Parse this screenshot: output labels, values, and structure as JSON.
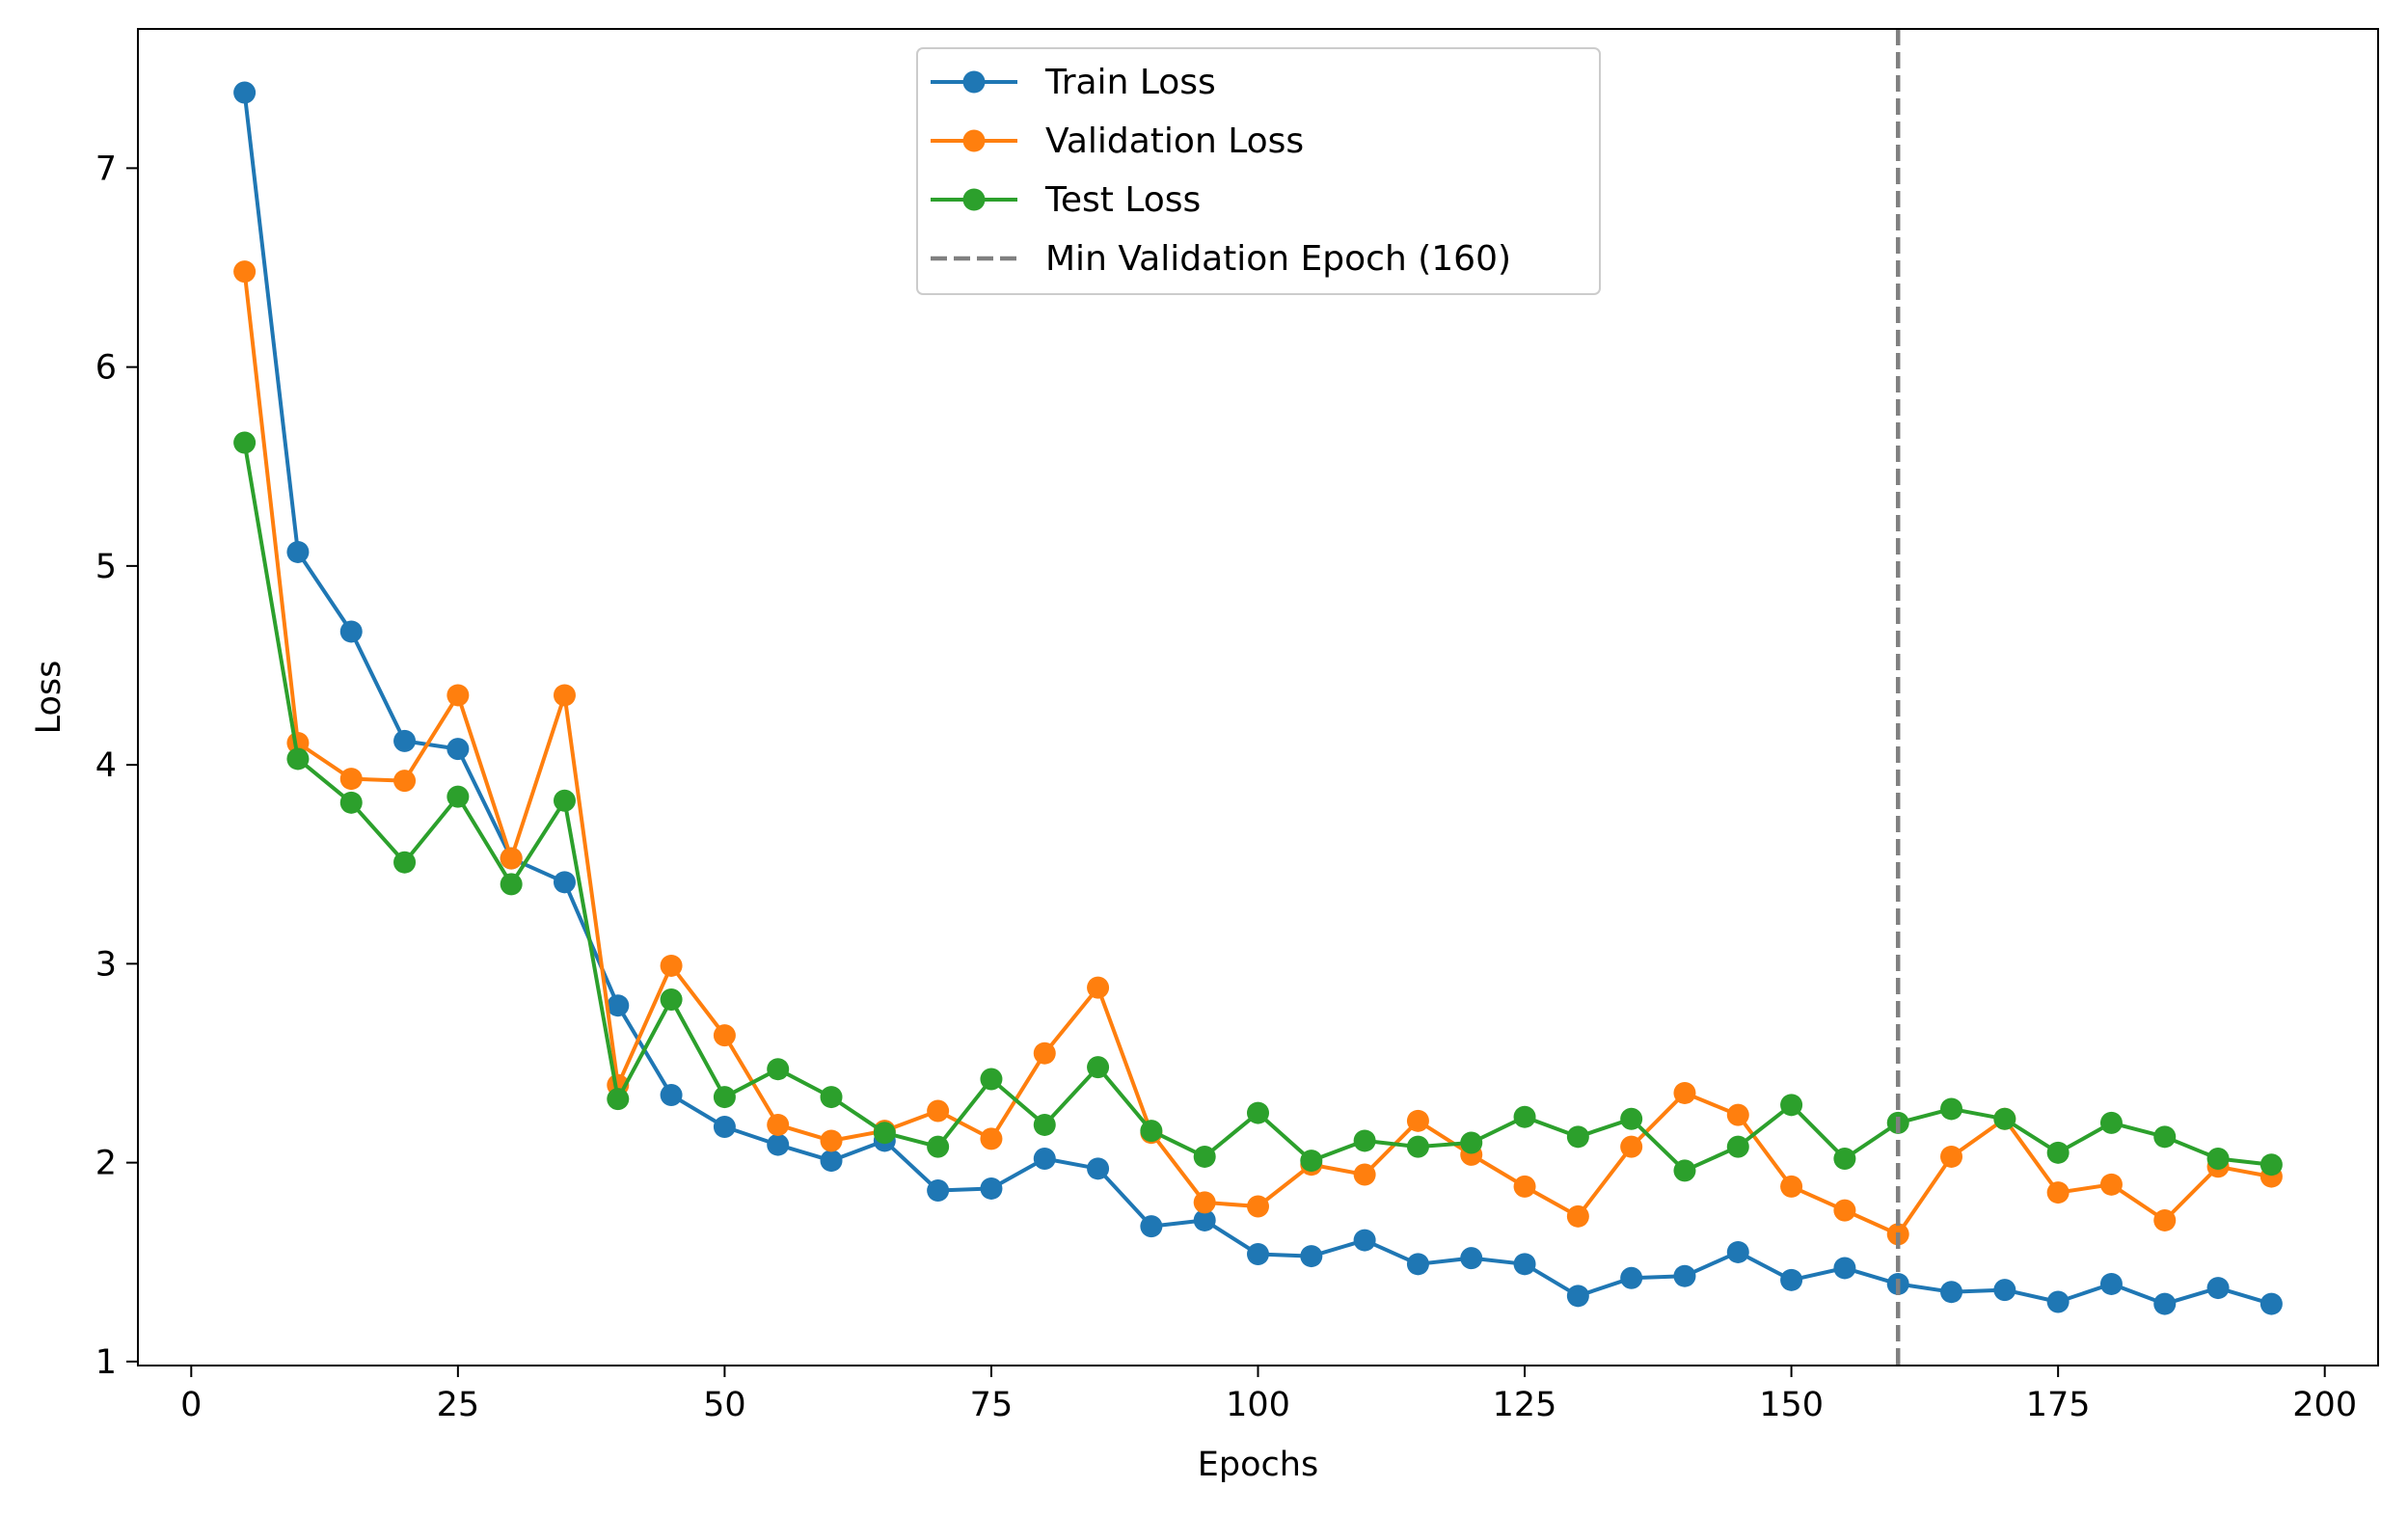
{
  "chart_data": {
    "type": "line",
    "title": "",
    "xlabel": "Epochs",
    "ylabel": "Loss",
    "xlim": [
      -5,
      205
    ],
    "ylim": [
      0.98,
      7.7
    ],
    "xticks": [
      0,
      25,
      50,
      75,
      100,
      125,
      150,
      175,
      200
    ],
    "yticks": [
      1,
      2,
      3,
      4,
      5,
      6,
      7
    ],
    "grid": false,
    "legend_position": "upper center",
    "x": [
      5,
      10,
      15,
      20,
      25,
      30,
      35,
      40,
      45,
      50,
      55,
      60,
      65,
      70,
      75,
      80,
      85,
      90,
      95,
      100,
      105,
      110,
      115,
      120,
      125,
      130,
      135,
      140,
      145,
      150,
      155,
      160,
      165,
      170,
      175,
      180,
      185,
      190,
      195
    ],
    "series": [
      {
        "name": "Train Loss",
        "color": "#1f77b4",
        "marker": "circle",
        "values": [
          7.38,
          5.07,
          4.67,
          4.12,
          4.08,
          3.53,
          3.41,
          2.79,
          2.34,
          2.18,
          2.09,
          2.01,
          2.11,
          1.86,
          1.87,
          2.02,
          1.97,
          1.68,
          1.71,
          1.54,
          1.53,
          1.61,
          1.49,
          1.52,
          1.49,
          1.33,
          1.42,
          1.43,
          1.55,
          1.41,
          1.47,
          1.39,
          1.35,
          1.36,
          1.3,
          1.39,
          1.29,
          1.37,
          1.29
        ]
      },
      {
        "name": "Validation Loss",
        "color": "#ff7f0e",
        "marker": "circle",
        "values": [
          6.48,
          4.11,
          3.93,
          3.92,
          4.35,
          3.53,
          4.35,
          2.39,
          2.99,
          2.64,
          2.19,
          2.11,
          2.16,
          2.26,
          2.12,
          2.55,
          2.88,
          2.15,
          1.8,
          1.78,
          1.99,
          1.94,
          2.21,
          2.04,
          1.88,
          1.73,
          2.08,
          2.35,
          2.24,
          1.88,
          1.76,
          1.64,
          2.03,
          2.22,
          1.85,
          1.89,
          1.71,
          1.98,
          1.93
        ]
      },
      {
        "name": "Test Loss",
        "color": "#2ca02c",
        "marker": "circle",
        "values": [
          5.62,
          4.03,
          3.81,
          3.51,
          3.84,
          3.4,
          3.82,
          2.32,
          2.82,
          2.33,
          2.47,
          2.33,
          2.15,
          2.08,
          2.42,
          2.19,
          2.48,
          2.16,
          2.03,
          2.25,
          2.01,
          2.11,
          2.08,
          2.1,
          2.23,
          2.13,
          2.22,
          1.96,
          2.08,
          2.29,
          2.02,
          2.2,
          2.27,
          2.22,
          2.05,
          2.2,
          2.13,
          2.02,
          1.99
        ]
      }
    ],
    "vline": {
      "name": "Min Validation Epoch (160)",
      "x": 160,
      "color": "#808080",
      "style": "dashed"
    }
  }
}
